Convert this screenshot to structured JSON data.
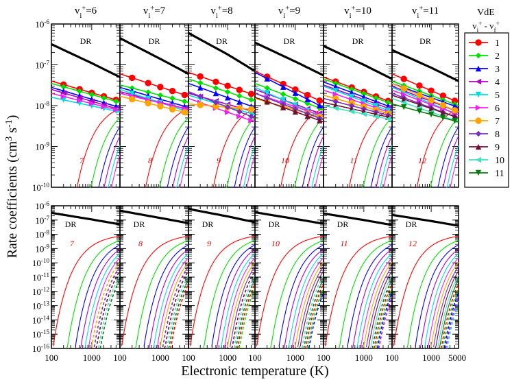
{
  "chart_data": {
    "type": "line",
    "ylabel": "Rate coefficients (cm^3 s^-1)",
    "xlabel": "Electronic temperature (K)",
    "x_scale": "log",
    "y_scale": "log",
    "xlim": [
      100,
      5000
    ],
    "ylim_top": [
      1e-10,
      1e-06
    ],
    "ylim_bottom": [
      1e-16,
      1e-06
    ],
    "panel_titles": [
      "v_i+=6",
      "v_i+=7",
      "v_i+=8",
      "v_i+=9",
      "v_i+=10",
      "v_i+=11"
    ],
    "vi": [
      6,
      7,
      8,
      9,
      10,
      11
    ],
    "panel_numbers": [
      "7",
      "8",
      "9",
      "10",
      "11",
      "12"
    ],
    "dr_label": "DR",
    "x_tick_labels": [
      "100",
      "1000",
      "5000"
    ],
    "y_top_tick_labels": [
      "10^-10",
      "10^-9",
      "10^-8",
      "10^-7",
      "10^-6"
    ],
    "y_bottom_tick_labels": [
      "10^-16",
      "10^-15",
      "10^-14",
      "10^-13",
      "10^-12",
      "10^-11",
      "10^-10",
      "10^-9",
      "10^-8",
      "10^-7",
      "10^-6"
    ],
    "legend": {
      "title_line1": "VdE",
      "title_line2": "v_i+ - v_f+",
      "entries": [
        {
          "label": "1",
          "color": "#ff0000",
          "marker": "circle"
        },
        {
          "label": "2",
          "color": "#00e000",
          "marker": "diamond"
        },
        {
          "label": "3",
          "color": "#0000ff",
          "marker": "triangle-up"
        },
        {
          "label": "4",
          "color": "#b000c8",
          "marker": "triangle-left"
        },
        {
          "label": "5",
          "color": "#00dddd",
          "marker": "triangle-down"
        },
        {
          "label": "6",
          "color": "#ee22ee",
          "marker": "triangle-right"
        },
        {
          "label": "7",
          "color": "#ffa500",
          "marker": "circle"
        },
        {
          "label": "8",
          "color": "#7b2fbe",
          "marker": "diamond"
        },
        {
          "label": "9",
          "color": "#6b0f33",
          "marker": "triangle-up"
        },
        {
          "label": "10",
          "color": "#40e0c0",
          "marker": "triangle-left"
        },
        {
          "label": "11",
          "color": "#0a7a0a",
          "marker": "triangle-down"
        }
      ]
    },
    "dr_curves": [
      {
        "vi": 6,
        "T": [
          100,
          1000,
          5000
        ],
        "rate": [
          3.2e-07,
          1.1e-07,
          5e-08
        ]
      },
      {
        "vi": 7,
        "T": [
          100,
          1000,
          5000
        ],
        "rate": [
          4.5e-07,
          1.4e-07,
          6e-08
        ]
      },
      {
        "vi": 8,
        "T": [
          100,
          1000,
          5000
        ],
        "rate": [
          6e-07,
          1.8e-07,
          7e-08
        ]
      },
      {
        "vi": 9,
        "T": [
          100,
          1000,
          5000
        ],
        "rate": [
          3.5e-07,
          1.2e-07,
          5.5e-08
        ]
      },
      {
        "vi": 10,
        "T": [
          100,
          1000,
          5000
        ],
        "rate": [
          2.9e-07,
          1e-07,
          4.5e-08
        ]
      },
      {
        "vi": 11,
        "T": [
          100,
          1000,
          5000
        ],
        "rate": [
          2.3e-07,
          8.5e-08,
          4e-08
        ]
      }
    ],
    "vde_series_by_panel": [
      {
        "vi": 6,
        "series": [
          {
            "label": "1",
            "T": [
              100,
              5000
            ],
            "rate": [
              4e-08,
              1.3e-08
            ]
          },
          {
            "label": "2",
            "T": [
              100,
              5000
            ],
            "rate": [
              3.5e-08,
              1.2e-08
            ]
          },
          {
            "label": "3",
            "T": [
              100,
              5000
            ],
            "rate": [
              2.8e-08,
              9e-09
            ]
          },
          {
            "label": "4",
            "T": [
              100,
              5000
            ],
            "rate": [
              2.5e-08,
              8e-09
            ]
          },
          {
            "label": "5",
            "T": [
              100,
              5000
            ],
            "rate": [
              1.6e-08,
              7e-09
            ]
          },
          {
            "label": "6",
            "T": [
              100,
              5000
            ],
            "rate": [
              2e-08,
              7.5e-09
            ]
          }
        ]
      },
      {
        "vi": 7,
        "series": [
          {
            "label": "1",
            "T": [
              100,
              5000
            ],
            "rate": [
              6e-08,
              1.7e-08
            ]
          },
          {
            "label": "2",
            "T": [
              100,
              5000
            ],
            "rate": [
              3.2e-08,
              1.2e-08
            ]
          },
          {
            "label": "3",
            "T": [
              100,
              5000
            ],
            "rate": [
              2.8e-08,
              9e-09
            ]
          },
          {
            "label": "4",
            "T": [
              100,
              5000
            ],
            "rate": [
              2.2e-08,
              8e-09
            ]
          },
          {
            "label": "5",
            "T": [
              100,
              5000
            ],
            "rate": [
              2.5e-08,
              7e-09
            ]
          },
          {
            "label": "6",
            "T": [
              100,
              5000
            ],
            "rate": [
              2e-08,
              8e-09
            ]
          },
          {
            "label": "7",
            "T": [
              100,
              5000
            ],
            "rate": [
              1.7e-08,
              6.5e-09
            ]
          }
        ]
      },
      {
        "vi": 8,
        "series": [
          {
            "label": "1",
            "T": [
              100,
              5000
            ],
            "rate": [
              6.5e-08,
              1.8e-08
            ]
          },
          {
            "label": "2",
            "T": [
              100,
              5000
            ],
            "rate": [
              4.5e-08,
              1.3e-08
            ]
          },
          {
            "label": "3",
            "T": [
              100,
              5000
            ],
            "rate": [
              3.5e-08,
              9e-09
            ]
          },
          {
            "label": "4",
            "T": [
              100,
              5000
            ],
            "rate": [
              2e-08,
              7e-09
            ]
          },
          {
            "label": "5",
            "T": [
              100,
              5000
            ],
            "rate": [
              1.8e-08,
              6e-09
            ]
          },
          {
            "label": "6",
            "T": [
              100,
              5000
            ],
            "rate": [
              1.5e-08,
              4e-09
            ]
          },
          {
            "label": "7",
            "T": [
              100,
              5000
            ],
            "rate": [
              1.1e-08,
              8e-09
            ]
          },
          {
            "label": "8",
            "T": [
              100,
              5000
            ],
            "rate": [
              2.2e-08,
              5e-09
            ]
          }
        ]
      },
      {
        "vi": 9,
        "series": [
          {
            "label": "1",
            "T": [
              100,
              5000
            ],
            "rate": [
              7e-08,
              1.2e-08
            ]
          },
          {
            "label": "2",
            "T": [
              100,
              5000
            ],
            "rate": [
              3.5e-08,
              8e-09
            ]
          },
          {
            "label": "3",
            "T": [
              100,
              5000
            ],
            "rate": [
              6.5e-08,
              9e-09
            ]
          },
          {
            "label": "4",
            "T": [
              100,
              5000
            ],
            "rate": [
              2.5e-08,
              6e-09
            ]
          },
          {
            "label": "5",
            "T": [
              100,
              5000
            ],
            "rate": [
              2.8e-08,
              5e-09
            ]
          },
          {
            "label": "6",
            "T": [
              100,
              5000
            ],
            "rate": [
              2e-08,
              5.5e-09
            ]
          },
          {
            "label": "7",
            "T": [
              100,
              5000
            ],
            "rate": [
              1.5e-08,
              5e-09
            ]
          },
          {
            "label": "8",
            "T": [
              100,
              5000
            ],
            "rate": [
              2e-08,
              4.5e-09
            ]
          },
          {
            "label": "9",
            "T": [
              100,
              5000
            ],
            "rate": [
              1.6e-08,
              4e-09
            ]
          }
        ]
      },
      {
        "vi": 10,
        "series": [
          {
            "label": "1",
            "T": [
              100,
              5000
            ],
            "rate": [
              5e-08,
              1.2e-08
            ]
          },
          {
            "label": "2",
            "T": [
              100,
              5000
            ],
            "rate": [
              4.5e-08,
              1.1e-08
            ]
          },
          {
            "label": "3",
            "T": [
              100,
              5000
            ],
            "rate": [
              3.8e-08,
              9e-09
            ]
          },
          {
            "label": "4",
            "T": [
              100,
              5000
            ],
            "rate": [
              3.2e-08,
              8e-09
            ]
          },
          {
            "label": "5",
            "T": [
              100,
              5000
            ],
            "rate": [
              3e-08,
              7e-09
            ]
          },
          {
            "label": "6",
            "T": [
              100,
              5000
            ],
            "rate": [
              2.4e-08,
              6.5e-09
            ]
          },
          {
            "label": "7",
            "T": [
              100,
              5000
            ],
            "rate": [
              1.8e-08,
              6e-09
            ]
          },
          {
            "label": "8",
            "T": [
              100,
              5000
            ],
            "rate": [
              1.5e-08,
              5.5e-09
            ]
          },
          {
            "label": "9",
            "T": [
              100,
              5000
            ],
            "rate": [
              1.2e-08,
              5e-09
            ]
          },
          {
            "label": "10",
            "T": [
              100,
              5000
            ],
            "rate": [
              1e-08,
              4.5e-09
            ]
          }
        ]
      },
      {
        "vi": 11,
        "series": [
          {
            "label": "1",
            "T": [
              100,
              5000
            ],
            "rate": [
              6e-08,
              1.2e-08
            ]
          },
          {
            "label": "2",
            "T": [
              100,
              5000
            ],
            "rate": [
              4e-08,
              1e-08
            ]
          },
          {
            "label": "3",
            "T": [
              100,
              5000
            ],
            "rate": [
              3.5e-08,
              9e-09
            ]
          },
          {
            "label": "4",
            "T": [
              100,
              5000
            ],
            "rate": [
              3e-08,
              7e-09
            ]
          },
          {
            "label": "5",
            "T": [
              100,
              5000
            ],
            "rate": [
              2.8e-08,
              6e-09
            ]
          },
          {
            "label": "6",
            "T": [
              100,
              5000
            ],
            "rate": [
              2.4e-08,
              6e-09
            ]
          },
          {
            "label": "7",
            "T": [
              100,
              5000
            ],
            "rate": [
              3.5e-08,
              7e-09
            ]
          },
          {
            "label": "8",
            "T": [
              100,
              5000
            ],
            "rate": [
              2e-08,
              5e-09
            ]
          },
          {
            "label": "9",
            "T": [
              100,
              5000
            ],
            "rate": [
              1.8e-08,
              5e-09
            ]
          },
          {
            "label": "10",
            "T": [
              100,
              5000
            ],
            "rate": [
              1.5e-08,
              4e-09
            ]
          },
          {
            "label": "11",
            "T": [
              100,
              5000
            ],
            "rate": [
              1.1e-08,
              4e-09
            ]
          }
        ]
      }
    ]
  }
}
